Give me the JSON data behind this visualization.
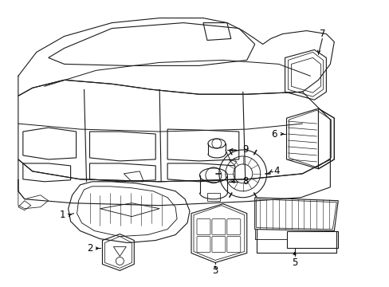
{
  "background_color": "#ffffff",
  "line_color": "#1a1a1a",
  "label_color": "#000000",
  "fig_width": 4.89,
  "fig_height": 3.6,
  "dpi": 100,
  "font_size": 8.5,
  "lw": 0.8
}
